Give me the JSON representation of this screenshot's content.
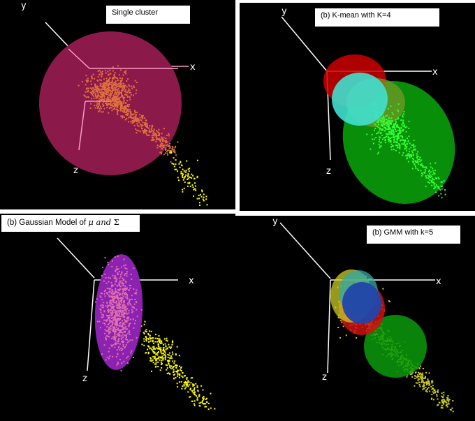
{
  "panels": [
    {
      "id": "p1",
      "label": "Single cluster",
      "colors": {
        "ellipse": "#8b1a4a",
        "points": "#e07040",
        "outliers": "#ffff00",
        "axes": "#ff99cc"
      }
    },
    {
      "id": "p2",
      "label": "(b) K-mean with K=4",
      "colors": {
        "red": "#cc0000",
        "green": "#0a9a0a",
        "olive": "#7a9a2a",
        "cyan": "#40e0d0",
        "points": "#33ff33"
      }
    },
    {
      "id": "p3",
      "label_prefix": "(b) Gaussian Model of ",
      "label_mu": "μ",
      "label_and": " and ",
      "label_sigma": "Σ",
      "colors": {
        "ellipse": "#8b22b0",
        "points": "#e070b0",
        "outliers": "#ffff00"
      }
    },
    {
      "id": "p4",
      "label": "(b) GMM with k=5",
      "colors": {
        "red": "#cc1010",
        "green": "#0a9a0a",
        "yellow": "#cccc22",
        "teal": "#33aaaa",
        "blue": "#2244aa"
      }
    }
  ],
  "axis_glyphs": {
    "x": "x",
    "y": "y",
    "z": "z"
  }
}
